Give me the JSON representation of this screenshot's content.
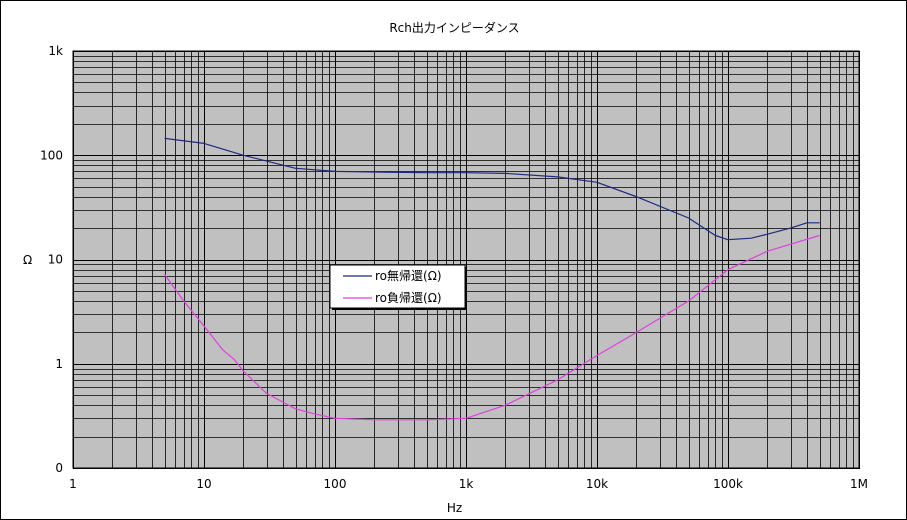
{
  "chart_data": {
    "type": "line",
    "title": "Rch出力インピーダンス",
    "xlabel": "Hz",
    "ylabel": "Ω",
    "x_scale": "log",
    "y_scale": "log",
    "xlim": [
      1,
      1000000
    ],
    "ylim": [
      0.1,
      1000
    ],
    "x_ticks": [
      {
        "value": 1,
        "label": "1"
      },
      {
        "value": 10,
        "label": "10"
      },
      {
        "value": 100,
        "label": "100"
      },
      {
        "value": 1000,
        "label": "1k"
      },
      {
        "value": 10000,
        "label": "10k"
      },
      {
        "value": 100000,
        "label": "100k"
      },
      {
        "value": 1000000,
        "label": "1M"
      }
    ],
    "y_ticks": [
      {
        "value": 0.1,
        "label": "0"
      },
      {
        "value": 1,
        "label": "1"
      },
      {
        "value": 10,
        "label": "10"
      },
      {
        "value": 100,
        "label": "100"
      },
      {
        "value": 1000,
        "label": "1k"
      }
    ],
    "grid": true,
    "plot_background": "#c0c0c0",
    "legend_position": "center-left",
    "series": [
      {
        "name": "ro無帰還(Ω)",
        "color": "#1c2a80",
        "points": [
          [
            5,
            145
          ],
          [
            10,
            130
          ],
          [
            20,
            100
          ],
          [
            50,
            75
          ],
          [
            100,
            70
          ],
          [
            200,
            69
          ],
          [
            500,
            68
          ],
          [
            1000,
            68
          ],
          [
            2000,
            67
          ],
          [
            5000,
            62
          ],
          [
            10000,
            55
          ],
          [
            20000,
            40
          ],
          [
            50000,
            25
          ],
          [
            80000,
            17
          ],
          [
            100000,
            15.5
          ],
          [
            150000,
            16
          ],
          [
            200000,
            17.5
          ],
          [
            300000,
            20
          ],
          [
            400000,
            22.5
          ],
          [
            500000,
            22.5
          ]
        ]
      },
      {
        "name": "ro負帰還(Ω)",
        "color": "#e040e0",
        "points": [
          [
            5,
            7.2
          ],
          [
            7,
            4
          ],
          [
            10,
            2.3
          ],
          [
            14,
            1.35
          ],
          [
            17,
            1.1
          ],
          [
            20,
            0.85
          ],
          [
            30,
            0.52
          ],
          [
            50,
            0.37
          ],
          [
            70,
            0.33
          ],
          [
            100,
            0.3
          ],
          [
            200,
            0.29
          ],
          [
            500,
            0.29
          ],
          [
            1000,
            0.3
          ],
          [
            2000,
            0.4
          ],
          [
            5000,
            0.7
          ],
          [
            10000,
            1.2
          ],
          [
            20000,
            2
          ],
          [
            50000,
            4
          ],
          [
            100000,
            8
          ],
          [
            200000,
            12
          ],
          [
            500000,
            17
          ]
        ]
      }
    ]
  }
}
